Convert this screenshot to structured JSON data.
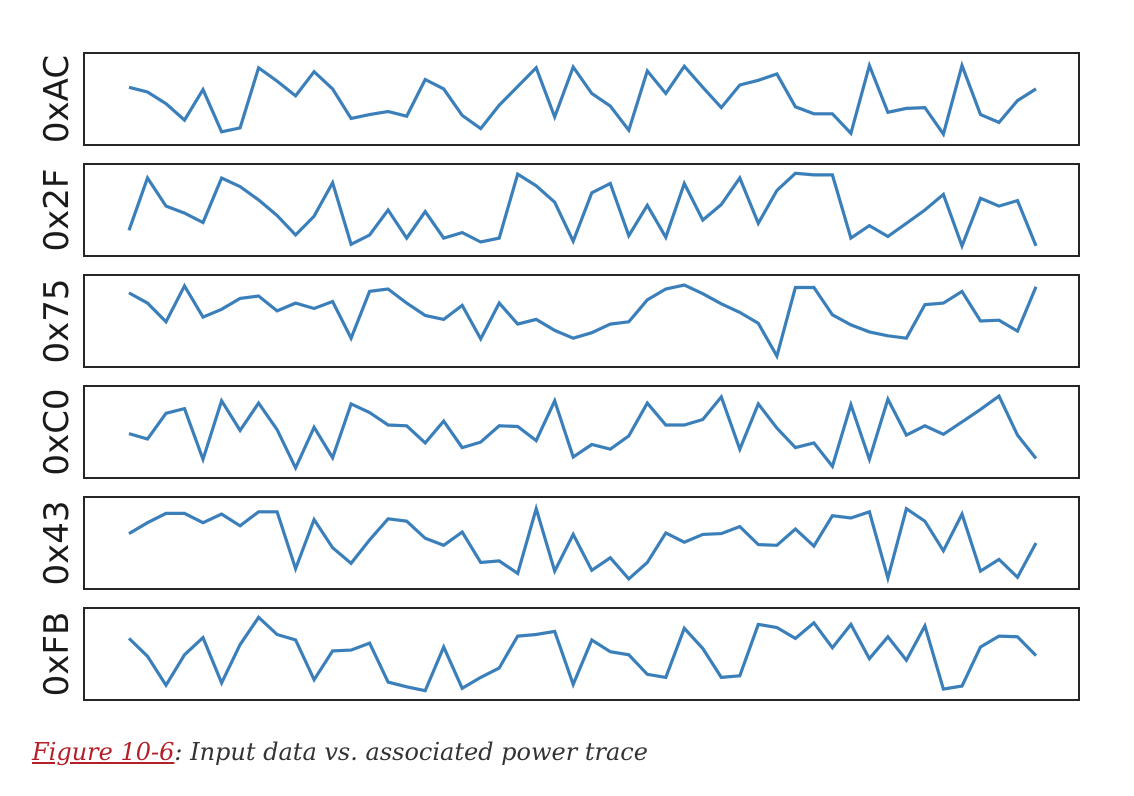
{
  "chart_data": {
    "type": "line",
    "caption": {
      "ref": "Figure 10-6",
      "text": ": Input data vs. associated power trace"
    },
    "colors": {
      "trace": "#3b7fba",
      "frame": "#262626"
    },
    "xlim": [
      0,
      48
    ],
    "ylim": [
      0,
      100
    ],
    "grid": false,
    "axis_ticks": false,
    "panels": [
      {
        "label": "0xAC",
        "values": [
          65,
          59,
          44,
          23,
          62,
          8,
          13,
          90,
          73,
          54,
          85,
          63,
          25,
          30,
          34,
          28,
          75,
          63,
          29,
          12,
          42,
          66,
          90,
          27,
          91,
          57,
          41,
          10,
          86,
          57,
          92,
          65,
          39,
          68,
          74,
          82,
          40,
          31,
          31,
          6,
          93,
          33,
          38,
          39,
          5,
          93,
          30,
          20,
          48,
          63
        ]
      },
      {
        "label": "0x2F",
        "values": [
          24,
          91,
          55,
          46,
          34,
          91,
          80,
          63,
          43,
          18,
          42,
          85,
          6,
          18,
          50,
          14,
          48,
          14,
          21,
          9,
          14,
          96,
          81,
          60,
          10,
          72,
          84,
          17,
          56,
          15,
          84,
          37,
          57,
          91,
          33,
          75,
          97,
          95,
          95,
          14,
          30,
          16,
          33,
          50,
          70,
          4,
          65,
          55,
          62,
          4
        ]
      },
      {
        "label": "0x75",
        "values": [
          86,
          73,
          49,
          95,
          55,
          65,
          79,
          82,
          63,
          73,
          66,
          75,
          28,
          88,
          91,
          73,
          57,
          52,
          70,
          27,
          73,
          46,
          52,
          38,
          28,
          35,
          46,
          49,
          77,
          91,
          96,
          85,
          72,
          61,
          47,
          5,
          93,
          93,
          58,
          45,
          36,
          31,
          28,
          71,
          73,
          88,
          50,
          51,
          37,
          94
        ]
      },
      {
        "label": "0xC0",
        "values": [
          48,
          41,
          74,
          80,
          15,
          90,
          52,
          87,
          53,
          4,
          56,
          17,
          86,
          75,
          59,
          58,
          36,
          64,
          30,
          37,
          58,
          57,
          39,
          90,
          18,
          34,
          28,
          45,
          87,
          59,
          59,
          66,
          95,
          28,
          86,
          55,
          30,
          36,
          6,
          85,
          15,
          92,
          46,
          58,
          47,
          63,
          79,
          96,
          46,
          16
        ]
      },
      {
        "label": "0x43",
        "values": [
          62,
          76,
          88,
          88,
          76,
          87,
          72,
          90,
          90,
          17,
          80,
          44,
          24,
          54,
          81,
          78,
          56,
          47,
          64,
          25,
          27,
          11,
          94,
          14,
          61,
          15,
          31,
          4,
          25,
          63,
          51,
          61,
          62,
          71,
          48,
          47,
          68,
          46,
          85,
          82,
          90,
          5,
          94,
          78,
          40,
          87,
          14,
          29,
          6,
          50
        ]
      },
      {
        "label": "0xFB",
        "values": [
          70,
          47,
          10,
          49,
          71,
          13,
          62,
          97,
          75,
          68,
          17,
          54,
          55,
          64,
          14,
          8,
          3,
          59,
          6,
          20,
          32,
          73,
          75,
          79,
          11,
          68,
          53,
          49,
          24,
          20,
          83,
          57,
          20,
          22,
          88,
          84,
          70,
          90,
          58,
          88,
          44,
          72,
          42,
          86,
          5,
          9,
          59,
          73,
          72,
          48
        ]
      }
    ]
  }
}
